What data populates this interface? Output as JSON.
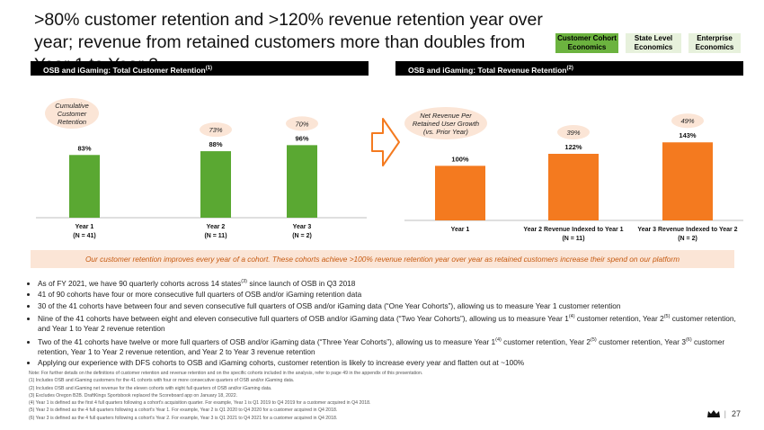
{
  "title": ">80% customer retention and >120% revenue retention year over year; revenue from retained customers more than doubles from Year 1 to Year 3",
  "tabs": [
    {
      "line1": "Customer Cohort",
      "line2": "Economics",
      "active": true
    },
    {
      "line1": "State Level",
      "line2": "Economics",
      "active": false
    },
    {
      "line1": "Enterprise",
      "line2": "Economics",
      "active": false
    }
  ],
  "left_header": {
    "text": "OSB and iGaming: Total Customer Retention",
    "sup": "(1)"
  },
  "right_header": {
    "text": "OSB and iGaming: Total Revenue Retention",
    "sup": "(2)"
  },
  "left_bubble": {
    "line1": "Cumulative",
    "line2": "Customer",
    "line3": "Retention"
  },
  "right_bubble": {
    "line1": "Net Revenue Per",
    "line2": "Retained User Growth",
    "line3": "(vs. Prior Year)"
  },
  "chart_data": [
    {
      "type": "bar",
      "title": "OSB and iGaming: Total Customer Retention",
      "categories": [
        "Year 1",
        "Year 2",
        "Year 3"
      ],
      "category_sublabels": [
        "(N = 41)",
        "(N = 11)",
        "(N = 2)"
      ],
      "values": [
        83,
        88,
        96
      ],
      "value_labels": [
        "83%",
        "88%",
        "96%"
      ],
      "annotations": [
        "",
        "73%",
        "70%"
      ],
      "ylim": [
        0,
        100
      ],
      "bar_color": "#5aa832"
    },
    {
      "type": "bar",
      "title": "OSB and iGaming: Total Revenue Retention",
      "categories": [
        "Year 1",
        "Year 2 Revenue Indexed to Year 1",
        "Year 3 Revenue Indexed to Year 2"
      ],
      "category_sublabels": [
        "",
        "(N = 11)",
        "(N = 2)"
      ],
      "values": [
        100,
        122,
        143
      ],
      "value_labels": [
        "100%",
        "122%",
        "143%"
      ],
      "annotations": [
        "",
        "39%",
        "49%"
      ],
      "ylim": [
        0,
        150
      ],
      "bar_color": "#f47a1f"
    }
  ],
  "banner": "Our customer retention improves every year of a cohort. These cohorts achieve >100% revenue retention year over year as retained customers increase their spend on our platform",
  "bullets": [
    {
      "parts": [
        "As of FY 2021, we have 90 quarterly cohorts across 14 states",
        "(3)",
        " since launch of OSB in Q3 2018"
      ]
    },
    {
      "parts": [
        "41 of 90 cohorts have four or more consecutive full quarters of OSB and/or iGaming retention data"
      ]
    },
    {
      "parts": [
        "30 of the 41 cohorts have between four and seven consecutive full quarters of OSB and/or iGaming data (“One Year Cohorts”), allowing us to measure Year 1 customer retention"
      ]
    },
    {
      "parts": [
        "Nine of the 41 cohorts have between eight and eleven consecutive full quarters of OSB and/or iGaming data (“Two Year Cohorts”), allowing us to measure Year 1",
        "(4)",
        " customer retention, Year 2",
        "(5)",
        " customer retention, and Year 1 to Year 2 revenue retention"
      ]
    },
    {
      "parts": [
        "Two of the 41 cohorts have twelve or more full quarters of OSB and/or iGaming data (“Three Year Cohorts”), allowing us to measure Year 1",
        "(4)",
        " customer retention, Year 2",
        "(5)",
        " customer retention, Year 3",
        "(6)",
        " customer retention, Year 1 to Year 2 revenue retention, and Year 2 to Year 3 revenue retention"
      ]
    },
    {
      "parts": [
        "Applying our experience with DFS cohorts to OSB and iGaming cohorts, customer retention is likely to increase every year and flatten out at ~100%"
      ]
    }
  ],
  "notes": [
    "Note: For further details on the definitions of customer retention and revenue retention and on the specific cohorts included in the analysis, refer to page 49 in the appendix of this presentation.",
    "(1)   Includes OSB and iGaming customers for the 41 cohorts with four or more consecutive quarters of OSB and/or iGaming data.",
    "(2)   Includes OSB and iGaming net revenue for the eleven cohorts with eight full quarters of OSB and/or iGaming data.",
    "(3)   Excludes Oregon B2B. DraftKings Sportsbook replaced the Scoreboard app on January 18, 2022.",
    "(4)   Year 1 is defined as the first 4 full quarters following a cohort's acquisition quarter. For example, Year 1 is Q1 2019 to Q4 2019 for a customer acquired in Q4 2018.",
    "(5)   Year 2 is defined as the 4 full quarters following a cohort's Year 1. For example, Year 2 is Q1 2020 to Q4 2020 for a customer acquired in Q4 2018.",
    "(6)   Year 3 is defined as the 4 full quarters following a cohort's Year 2. For example, Year 3 is Q1 2021 to Q4 2021 for a customer acquired in Q4 2018."
  ],
  "page_number": "27",
  "page_separator": "|"
}
